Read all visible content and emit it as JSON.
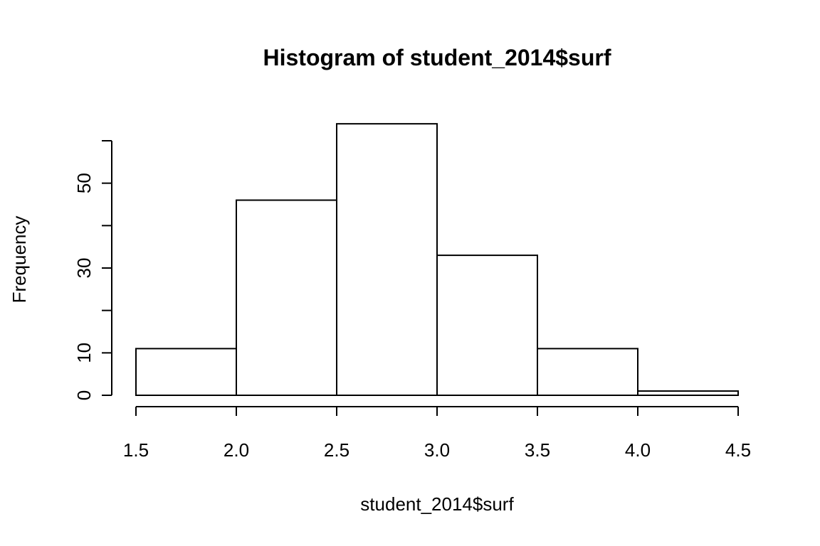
{
  "chart_data": {
    "type": "bar",
    "title": "Histogram of student_2014$surf",
    "xlabel": "student_2014$surf",
    "ylabel": "Frequency",
    "bins": [
      {
        "from": 1.5,
        "to": 2.0,
        "count": 11
      },
      {
        "from": 2.0,
        "to": 2.5,
        "count": 46
      },
      {
        "from": 2.5,
        "to": 3.0,
        "count": 64
      },
      {
        "from": 3.0,
        "to": 3.5,
        "count": 33
      },
      {
        "from": 3.5,
        "to": 4.0,
        "count": 11
      },
      {
        "from": 4.0,
        "to": 4.5,
        "count": 1
      }
    ],
    "x_ticks": [
      "1.5",
      "2.0",
      "2.5",
      "3.0",
      "3.5",
      "4.0",
      "4.5"
    ],
    "y_ticks": [
      0,
      10,
      20,
      30,
      40,
      50,
      60
    ],
    "y_tick_labels": [
      "0",
      "10",
      "",
      "30",
      "",
      "50",
      ""
    ],
    "xlim": [
      1.5,
      4.5
    ],
    "ylim": [
      0,
      60
    ],
    "grid": false,
    "legend": "none"
  }
}
